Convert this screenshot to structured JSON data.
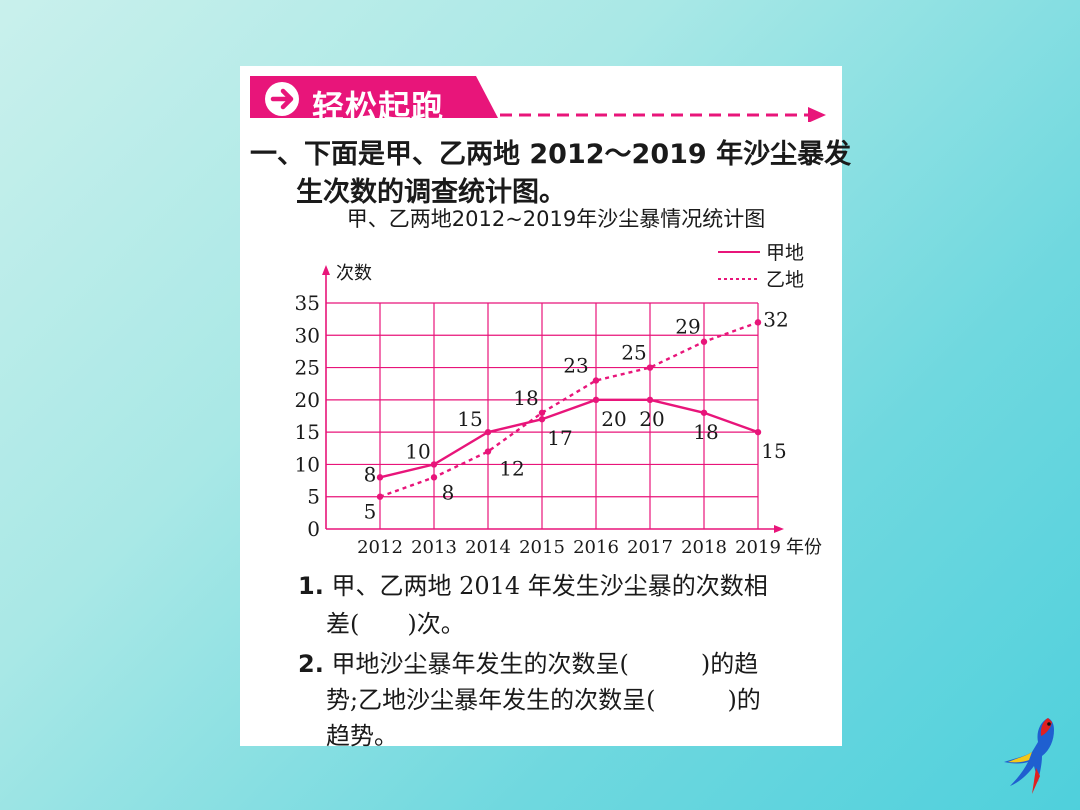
{
  "banner": {
    "label": "轻松起跑"
  },
  "question": {
    "line1": "一、下面是甲、乙两地 2012～2019 年沙尘暴发",
    "line2": "生次数的调查统计图。"
  },
  "chart_data": {
    "type": "line",
    "title": "甲、乙两地2012~2019年沙尘暴情况统计图",
    "ylabel": "次数",
    "xlabel": "年份",
    "categories": [
      "2012",
      "2013",
      "2014",
      "2015",
      "2016",
      "2017",
      "2018",
      "2019"
    ],
    "ylim": [
      0,
      35
    ],
    "yticks": [
      0,
      5,
      10,
      15,
      20,
      25,
      30,
      35
    ],
    "grid": true,
    "legend_position": "top-right",
    "series": [
      {
        "name": "甲地",
        "style": "solid",
        "values": [
          8,
          10,
          15,
          17,
          20,
          20,
          18,
          15
        ]
      },
      {
        "name": "乙地",
        "style": "dotted",
        "values": [
          5,
          8,
          12,
          18,
          23,
          25,
          29,
          32
        ]
      }
    ],
    "colors": {
      "line": "#e8157a",
      "grid": "#e8157a"
    }
  },
  "subquestions": [
    {
      "num": "1.",
      "line1": "甲、乙两地 2014 年发生沙尘暴的次数相",
      "line2": "差(　　)次。"
    },
    {
      "num": "2.",
      "line1": "甲地沙尘暴年发生的次数呈(　　　)的趋",
      "line2": "势;乙地沙尘暴年发生的次数呈(　　　)的",
      "line3": "趋势。"
    }
  ],
  "icons": {
    "banner": "arrow-circle-icon",
    "decoration": "parrot-icon"
  }
}
